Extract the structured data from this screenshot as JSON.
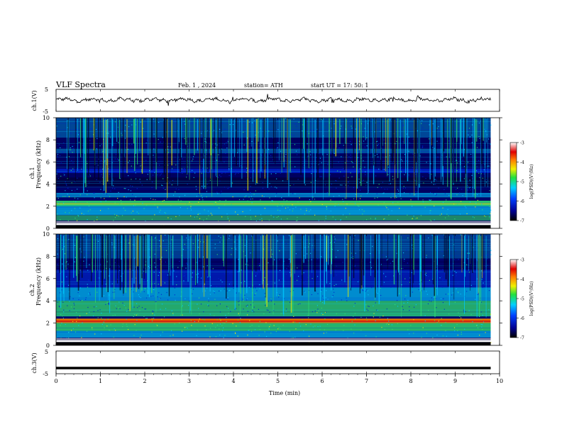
{
  "header": {
    "title": "VLF Spectra",
    "date": "Feb. 1 , 2024",
    "station": "station= ATH",
    "start_ut": "start UT =   17: 50: 1"
  },
  "chart_data": [
    {
      "type": "line",
      "name": "ch1-waveform",
      "ylabel": "ch.1(V)",
      "yticks": [
        "5",
        "-5"
      ],
      "ylim": [
        -5,
        5
      ],
      "xlim": [
        0,
        10
      ],
      "trace_mean_v": 0.2,
      "trace_end_min": 9.8
    },
    {
      "type": "heatmap",
      "name": "ch1-spectrogram",
      "ylabel_line1": "ch.1",
      "ylabel_line2": "Frequency  (kHz)",
      "yticks": [
        "0",
        "2",
        "4",
        "6",
        "8",
        "10"
      ],
      "ylim": [
        0,
        10
      ],
      "xlim": [
        0,
        10
      ],
      "data_end_min": 9.8,
      "colorbar": {
        "label": "log(PSD)(V²/Hz)",
        "ticks": [
          "-3",
          "-4",
          "-5",
          "-6",
          "-7"
        ],
        "range": [
          -7,
          -3
        ]
      }
    },
    {
      "type": "heatmap",
      "name": "ch2-spectrogram",
      "ylabel_line1": "ch.2",
      "ylabel_line2": "Frequency  (kHz)",
      "yticks": [
        "0",
        "2",
        "4",
        "6",
        "8",
        "10"
      ],
      "ylim": [
        0,
        10
      ],
      "xlim": [
        0,
        10
      ],
      "data_end_min": 9.8,
      "colorbar": {
        "label": "log(PSD)(V²/Hz)",
        "ticks": [
          "-3",
          "-4",
          "-5",
          "-6",
          "-7"
        ],
        "range": [
          -7,
          -3
        ]
      }
    },
    {
      "type": "line",
      "name": "ch3-waveform",
      "ylabel": "ch.3(V)",
      "yticks": [
        "5",
        "-5"
      ],
      "ylim": [
        -5,
        5
      ],
      "xlim": [
        0,
        10
      ],
      "trace_value_v": -2.5,
      "trace_end_min": 9.8
    }
  ],
  "xaxis": {
    "label": "Time  (min)",
    "ticks": [
      "0",
      "1",
      "2",
      "3",
      "4",
      "5",
      "6",
      "7",
      "8",
      "9",
      "10"
    ]
  },
  "colors": {
    "deep": "#000060",
    "blue": "#0022cc",
    "cyan": "#00c8ff",
    "green": "#30e070",
    "yellow": "#f0f000",
    "orange": "#ff8800",
    "red": "#e00000",
    "bar_bottom": "#000000",
    "bar_top": "#ffffff"
  }
}
